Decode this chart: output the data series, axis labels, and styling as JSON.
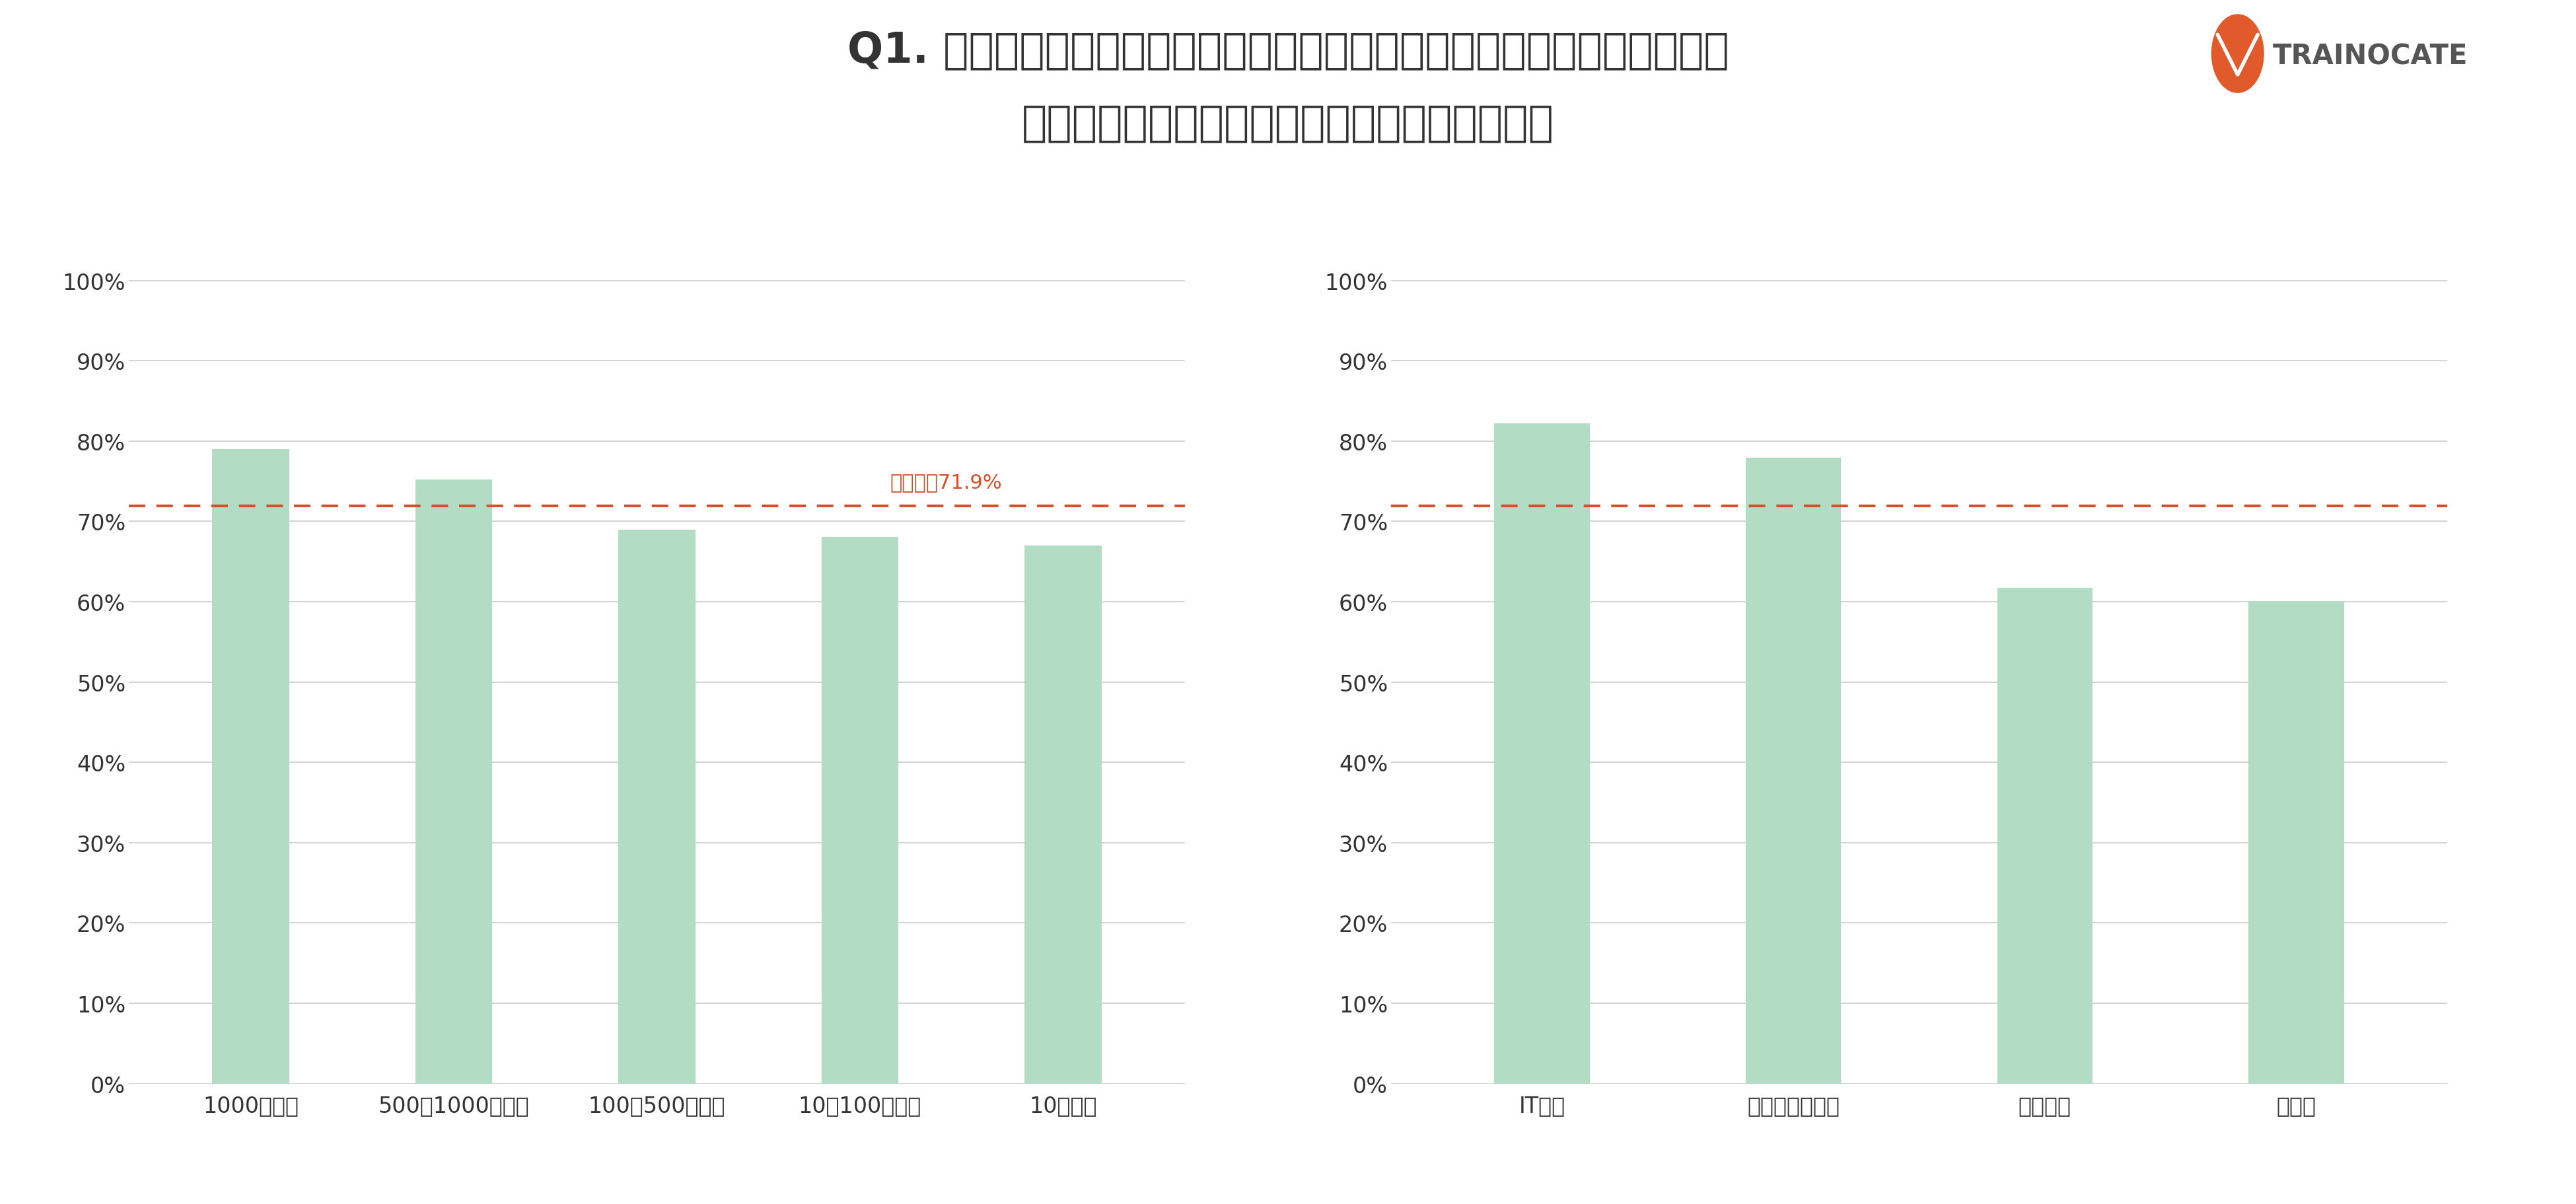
{
  "title_line1": "Q1. あなたは、ご自身の業務に対するスキルを向上したいと思いますか。",
  "title_line2": "「そう思う」「ややそう思う」と回答した割合",
  "title_fontsize": 46,
  "background_color": "#ffffff",
  "bar_color": "#b2dcc4",
  "average_line_value": 0.719,
  "average_label": "全体平均71.9%",
  "average_line_color": "#d94f2b",
  "left_chart": {
    "categories": [
      "1000人以上",
      "500－1000人未満",
      "100－500人未満",
      "10－100人未満",
      "10人未満"
    ],
    "values": [
      0.79,
      0.752,
      0.69,
      0.681,
      0.67
    ]
  },
  "right_chart": {
    "categories": [
      "IT産業",
      "金融業・保険業",
      "メーカー",
      "小売業"
    ],
    "values": [
      0.822,
      0.779,
      0.617,
      0.601
    ]
  },
  "yticks": [
    0.0,
    0.1,
    0.2,
    0.3,
    0.4,
    0.5,
    0.6,
    0.7,
    0.8,
    0.9,
    1.0
  ],
  "grid_color": "#cccccc",
  "text_color": "#333333",
  "tick_fontsize": 24,
  "xlabel_fontsize": 24,
  "avg_label_fontsize": 22,
  "logo_text": "TRAINOCATE",
  "logo_orange": "#e05a2b"
}
